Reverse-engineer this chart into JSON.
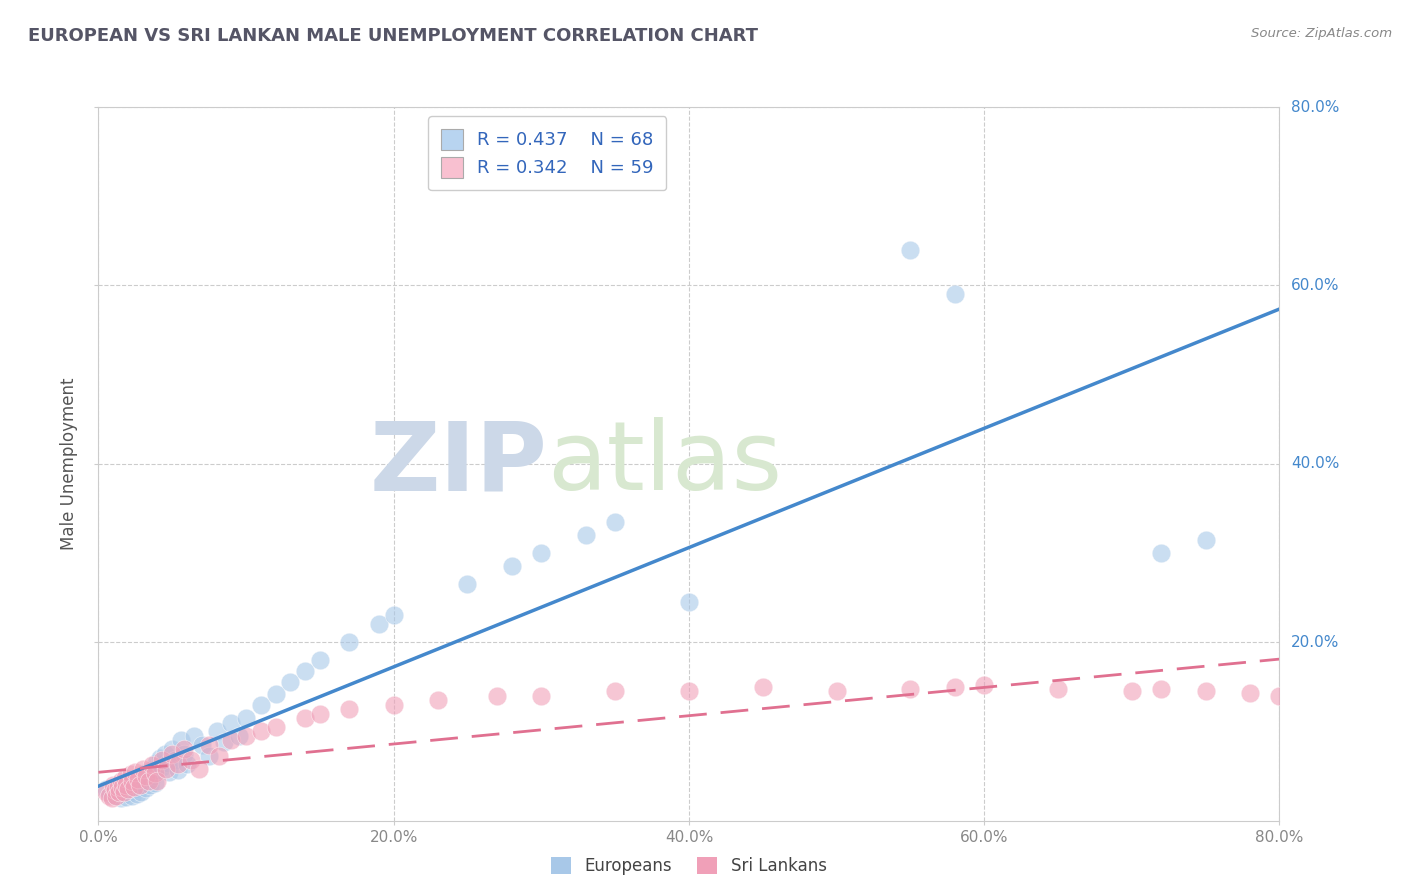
{
  "title": "EUROPEAN VS SRI LANKAN MALE UNEMPLOYMENT CORRELATION CHART",
  "source_text": "Source: ZipAtlas.com",
  "ylabel": "Male Unemployment",
  "xlim": [
    0.0,
    0.8
  ],
  "ylim": [
    0.0,
    0.8
  ],
  "xticks": [
    0.0,
    0.2,
    0.4,
    0.6,
    0.8
  ],
  "yticks": [
    0.2,
    0.4,
    0.6,
    0.8
  ],
  "xticklabels": [
    "0.0%",
    "20.0%",
    "40.0%",
    "60.0%",
    "80.0%"
  ],
  "yticklabels": [
    "20.0%",
    "40.0%",
    "60.0%",
    "80.0%"
  ],
  "watermark_zip": "ZIP",
  "watermark_atlas": "atlas",
  "legend_R1": "0.437",
  "legend_N1": "68",
  "legend_R2": "0.342",
  "legend_N2": "59",
  "european_color": "#a8c8e8",
  "srilankan_color": "#f0a0b8",
  "trendline_blue": "#4488cc",
  "trendline_pink": "#e07090",
  "legend_blue_fill": "#b8d4f0",
  "legend_pink_fill": "#f8c0d0",
  "background_color": "#ffffff",
  "grid_color": "#cccccc",
  "right_label_color": "#4488cc",
  "ylabel_color": "#555555",
  "title_color": "#555566",
  "europeans_x": [
    0.005,
    0.008,
    0.01,
    0.012,
    0.013,
    0.015,
    0.016,
    0.017,
    0.018,
    0.019,
    0.02,
    0.021,
    0.022,
    0.023,
    0.024,
    0.025,
    0.026,
    0.027,
    0.028,
    0.029,
    0.03,
    0.031,
    0.032,
    0.033,
    0.034,
    0.035,
    0.036,
    0.037,
    0.038,
    0.039,
    0.04,
    0.042,
    0.043,
    0.045,
    0.047,
    0.048,
    0.05,
    0.052,
    0.054,
    0.056,
    0.058,
    0.06,
    0.065,
    0.07,
    0.075,
    0.08,
    0.085,
    0.09,
    0.095,
    0.1,
    0.11,
    0.12,
    0.13,
    0.14,
    0.15,
    0.17,
    0.19,
    0.2,
    0.25,
    0.28,
    0.3,
    0.33,
    0.35,
    0.4,
    0.55,
    0.58,
    0.72,
    0.75
  ],
  "europeans_y": [
    0.035,
    0.03,
    0.032,
    0.028,
    0.038,
    0.025,
    0.04,
    0.035,
    0.03,
    0.027,
    0.045,
    0.038,
    0.033,
    0.028,
    0.042,
    0.036,
    0.03,
    0.048,
    0.04,
    0.032,
    0.052,
    0.044,
    0.037,
    0.055,
    0.047,
    0.04,
    0.058,
    0.05,
    0.042,
    0.065,
    0.057,
    0.07,
    0.06,
    0.075,
    0.065,
    0.055,
    0.08,
    0.068,
    0.057,
    0.09,
    0.075,
    0.063,
    0.095,
    0.085,
    0.072,
    0.1,
    0.088,
    0.11,
    0.095,
    0.115,
    0.13,
    0.142,
    0.155,
    0.168,
    0.18,
    0.2,
    0.22,
    0.23,
    0.265,
    0.285,
    0.3,
    0.32,
    0.335,
    0.245,
    0.64,
    0.59,
    0.3,
    0.315
  ],
  "srilankans_x": [
    0.005,
    0.007,
    0.009,
    0.01,
    0.011,
    0.012,
    0.013,
    0.014,
    0.015,
    0.016,
    0.017,
    0.018,
    0.019,
    0.02,
    0.022,
    0.023,
    0.024,
    0.025,
    0.027,
    0.028,
    0.03,
    0.032,
    0.034,
    0.036,
    0.038,
    0.04,
    0.043,
    0.046,
    0.05,
    0.054,
    0.058,
    0.063,
    0.068,
    0.075,
    0.082,
    0.09,
    0.1,
    0.11,
    0.12,
    0.14,
    0.15,
    0.17,
    0.2,
    0.23,
    0.27,
    0.3,
    0.35,
    0.4,
    0.45,
    0.5,
    0.55,
    0.58,
    0.6,
    0.65,
    0.7,
    0.72,
    0.75,
    0.78,
    0.8
  ],
  "srilankans_y": [
    0.032,
    0.028,
    0.025,
    0.04,
    0.034,
    0.028,
    0.038,
    0.032,
    0.045,
    0.038,
    0.032,
    0.048,
    0.04,
    0.035,
    0.052,
    0.044,
    0.038,
    0.055,
    0.047,
    0.04,
    0.058,
    0.05,
    0.045,
    0.062,
    0.053,
    0.045,
    0.068,
    0.058,
    0.075,
    0.063,
    0.08,
    0.068,
    0.058,
    0.085,
    0.072,
    0.09,
    0.095,
    0.1,
    0.105,
    0.115,
    0.12,
    0.125,
    0.13,
    0.135,
    0.14,
    0.14,
    0.145,
    0.145,
    0.15,
    0.145,
    0.148,
    0.15,
    0.152,
    0.148,
    0.145,
    0.148,
    0.145,
    0.143,
    0.14
  ]
}
